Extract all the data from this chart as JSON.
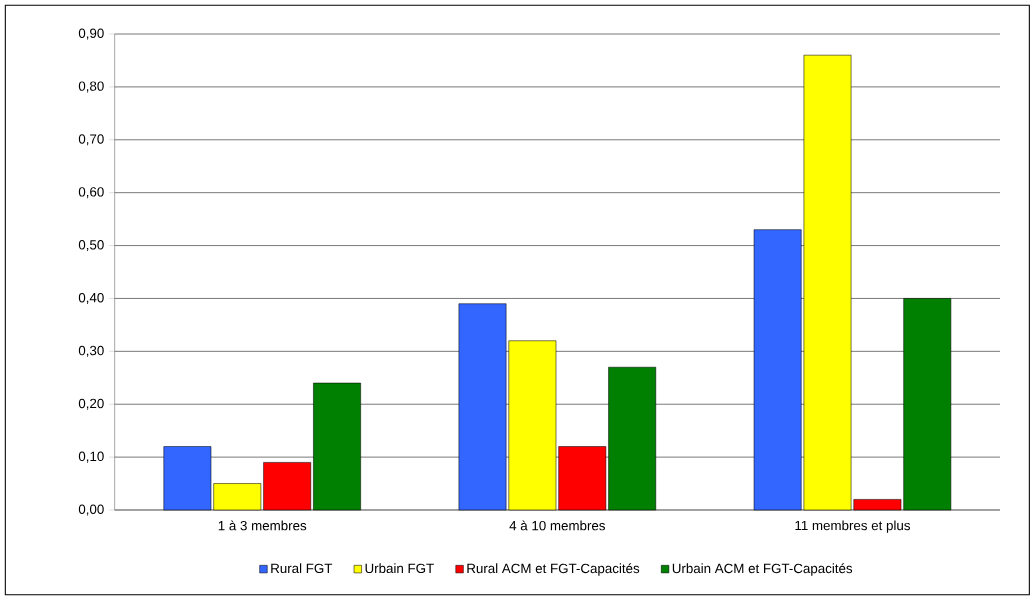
{
  "chart_data": {
    "type": "bar",
    "categories": [
      "1 à 3 membres",
      "4 à 10 membres",
      "11 membres et plus"
    ],
    "series": [
      {
        "name": "Rural FGT",
        "color": "#3366ff",
        "values": [
          0.12,
          0.39,
          0.53
        ]
      },
      {
        "name": "Urbain FGT",
        "color": "#ffff00",
        "values": [
          0.05,
          0.32,
          0.86
        ]
      },
      {
        "name": "Rural ACM et FGT-Capacités",
        "color": "#ff0000",
        "values": [
          0.09,
          0.12,
          0.02
        ]
      },
      {
        "name": "Urbain ACM et FGT-Capacités",
        "color": "#008000",
        "values": [
          0.24,
          0.27,
          0.4
        ]
      }
    ],
    "ylim": [
      0,
      0.9
    ],
    "yticks": [
      {
        "value": 0,
        "label": "0,00"
      },
      {
        "value": 0.1,
        "label": "0,10"
      },
      {
        "value": 0.2,
        "label": "0,20"
      },
      {
        "value": 0.3,
        "label": "0,30"
      },
      {
        "value": 0.4,
        "label": "0,40"
      },
      {
        "value": 0.5,
        "label": "0,50"
      },
      {
        "value": 0.6,
        "label": "0,60"
      },
      {
        "value": 0.7,
        "label": "0,70"
      },
      {
        "value": 0.8,
        "label": "0,80"
      },
      {
        "value": 0.9,
        "label": "0,90"
      }
    ],
    "grid": "y",
    "legend": "bottom"
  }
}
